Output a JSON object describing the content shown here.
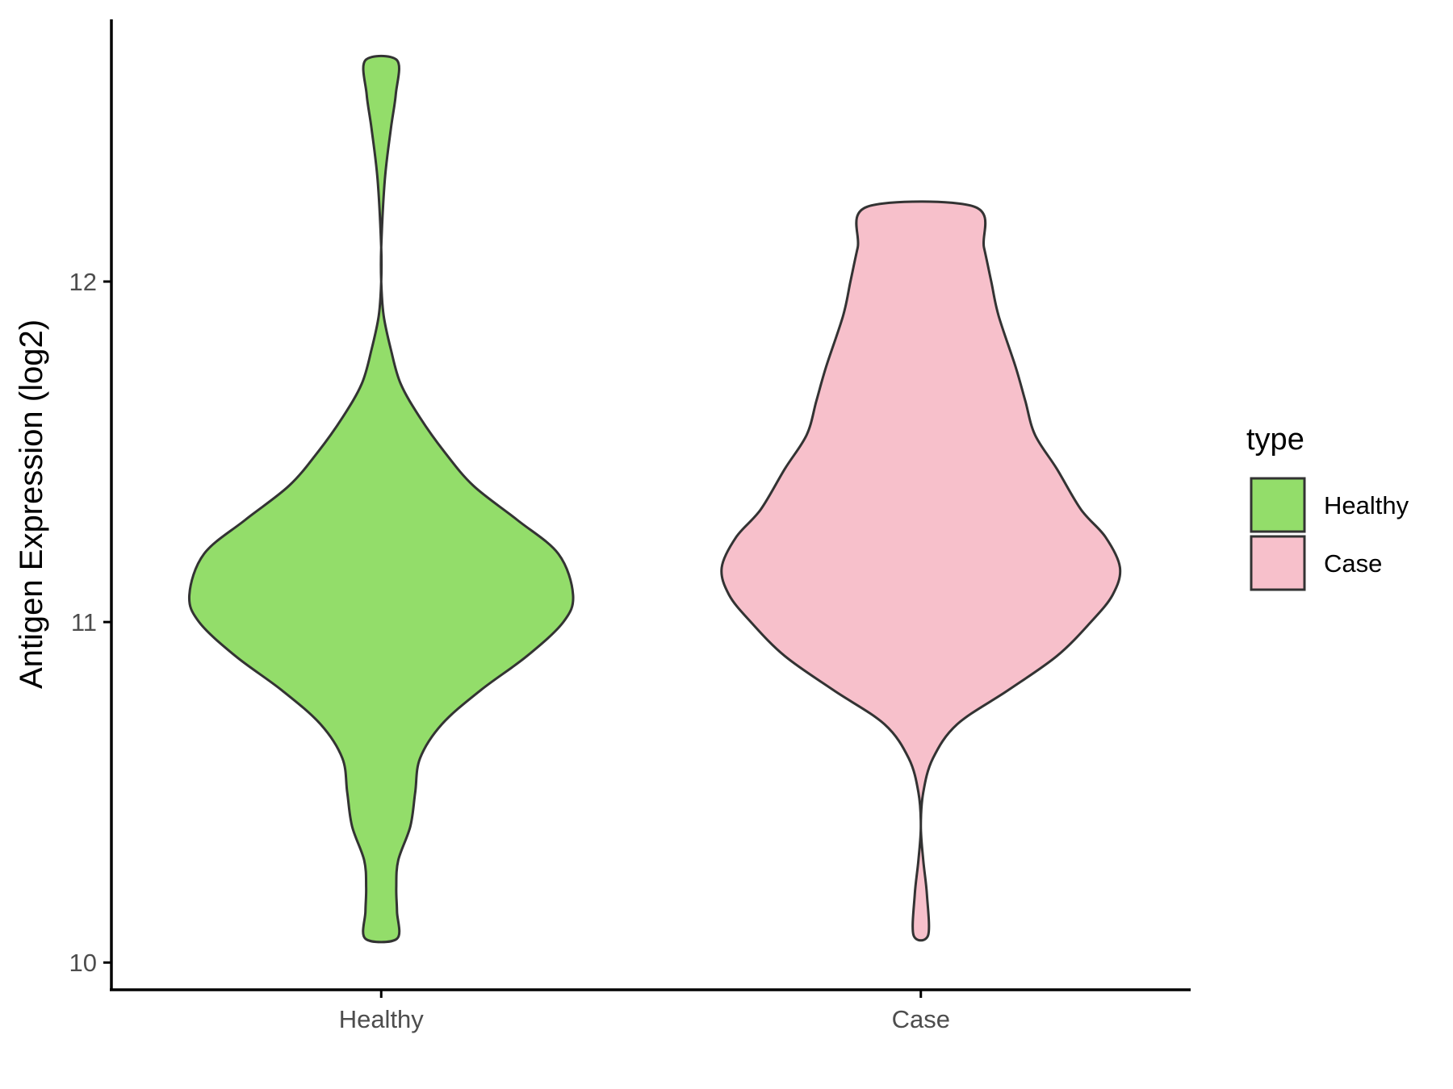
{
  "chart_data": {
    "type": "violin",
    "title": "",
    "xlabel": "",
    "ylabel": "Antigen Expression (log2)",
    "ylim": [
      9.92,
      12.77
    ],
    "yticks": [
      10,
      11,
      12
    ],
    "grid": false,
    "legend": {
      "title": "type",
      "placement": "right"
    },
    "categories": [
      "Healthy",
      "Case"
    ],
    "series": [
      {
        "name": "Healthy",
        "category": "Healthy",
        "color": "#93DD6A",
        "min": 10.07,
        "max": 12.65,
        "density": [
          [
            10.07,
            0.065
          ],
          [
            10.15,
            0.065
          ],
          [
            10.22,
            0.062
          ],
          [
            10.3,
            0.07
          ],
          [
            10.4,
            0.12
          ],
          [
            10.5,
            0.14
          ],
          [
            10.6,
            0.16
          ],
          [
            10.7,
            0.25
          ],
          [
            10.8,
            0.41
          ],
          [
            10.9,
            0.6
          ],
          [
            11.0,
            0.75
          ],
          [
            11.08,
            0.79
          ],
          [
            11.2,
            0.73
          ],
          [
            11.3,
            0.56
          ],
          [
            11.4,
            0.38
          ],
          [
            11.5,
            0.26
          ],
          [
            11.6,
            0.16
          ],
          [
            11.7,
            0.08
          ],
          [
            11.8,
            0.04
          ],
          [
            11.9,
            0.01
          ],
          [
            12.0,
            0.0
          ],
          [
            12.1,
            0.0
          ],
          [
            12.3,
            0.015
          ],
          [
            12.45,
            0.04
          ],
          [
            12.55,
            0.06
          ],
          [
            12.65,
            0.065
          ]
        ]
      },
      {
        "name": "Case",
        "category": "Case",
        "color": "#F7C0CB",
        "min": 10.08,
        "max": 12.22,
        "density": [
          [
            10.08,
            0.03
          ],
          [
            10.2,
            0.025
          ],
          [
            10.3,
            0.01
          ],
          [
            10.4,
            0.0
          ],
          [
            10.5,
            0.01
          ],
          [
            10.6,
            0.05
          ],
          [
            10.7,
            0.15
          ],
          [
            10.8,
            0.36
          ],
          [
            10.9,
            0.56
          ],
          [
            11.0,
            0.7
          ],
          [
            11.08,
            0.79
          ],
          [
            11.16,
            0.82
          ],
          [
            11.25,
            0.76
          ],
          [
            11.33,
            0.66
          ],
          [
            11.45,
            0.56
          ],
          [
            11.55,
            0.47
          ],
          [
            11.65,
            0.43
          ],
          [
            11.75,
            0.39
          ],
          [
            11.9,
            0.32
          ],
          [
            12.0,
            0.29
          ],
          [
            12.1,
            0.26
          ],
          [
            12.22,
            0.22
          ]
        ]
      }
    ]
  }
}
